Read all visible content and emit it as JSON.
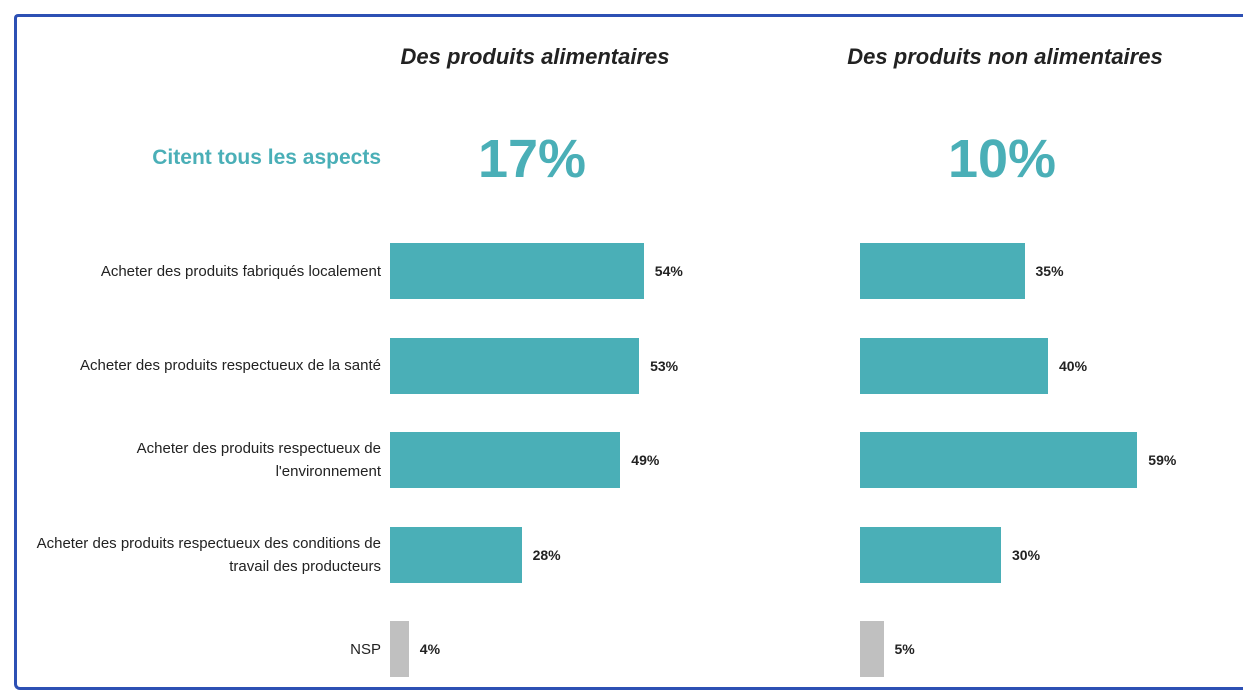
{
  "chart_data": {
    "type": "bar",
    "orientation": "horizontal",
    "categories": [
      "Acheter des produits fabriqués localement",
      "Acheter des produits respectueux de la santé",
      "Acheter des produits respectueux de l'environnement",
      "Acheter des produits respectueux des conditions de travail des producteurs",
      "NSP"
    ],
    "xlim": [
      0,
      100
    ],
    "highlight": {
      "label": "Citent tous les aspects",
      "values": [
        17,
        10
      ],
      "value_labels": [
        "17%",
        "10%"
      ]
    },
    "series": [
      {
        "name": "Des produits alimentaires",
        "values": [
          54,
          53,
          49,
          28,
          4
        ],
        "value_labels": [
          "54%",
          "53%",
          "49%",
          "28%",
          "4%"
        ],
        "colors": [
          "#4aafb7",
          "#4aafb7",
          "#4aafb7",
          "#4aafb7",
          "#c0c0c0"
        ]
      },
      {
        "name": "Des produits non alimentaires",
        "values": [
          35,
          40,
          59,
          30,
          5
        ],
        "value_labels": [
          "35%",
          "40%",
          "59%",
          "30%",
          "5%"
        ],
        "colors": [
          "#4aafb7",
          "#4aafb7",
          "#4aafb7",
          "#4aafb7",
          "#c0c0c0"
        ]
      }
    ]
  }
}
